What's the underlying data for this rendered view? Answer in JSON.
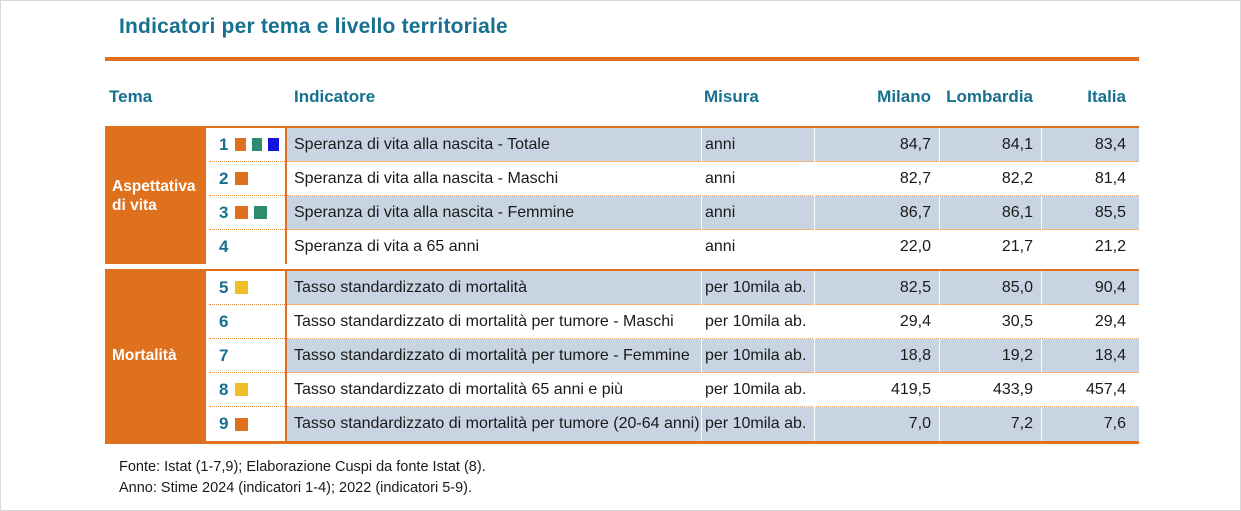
{
  "title": "Indicatori per tema e livello territoriale",
  "colors": {
    "accent_orange": "#DF701E",
    "heading_teal": "#17708F",
    "row_shade_blue": "#C9D4E3",
    "squares": {
      "orange": "#DF701E",
      "green": "#2E8C6E",
      "blue": "#1313DD",
      "yellow": "#EFBE29"
    }
  },
  "table": {
    "headers": {
      "tema": "Tema",
      "indicatore": "Indicatore",
      "misura": "Misura",
      "milano": "Milano",
      "lombardia": "Lombardia",
      "italia": "Italia"
    },
    "groups": [
      {
        "tema": "Aspettativa di vita",
        "rows": [
          {
            "num": "1",
            "squares": [
              "orange",
              "green",
              "blue"
            ],
            "indicatore": "Speranza di vita alla nascita - Totale",
            "misura": "anni",
            "milano": "84,7",
            "lombardia": "84,1",
            "italia": "83,4"
          },
          {
            "num": "2",
            "squares": [
              "orange"
            ],
            "indicatore": "Speranza di vita alla nascita - Maschi",
            "misura": "anni",
            "milano": "82,7",
            "lombardia": "82,2",
            "italia": "81,4"
          },
          {
            "num": "3",
            "squares": [
              "orange",
              "green"
            ],
            "indicatore": "Speranza di vita alla nascita - Femmine",
            "misura": "anni",
            "milano": "86,7",
            "lombardia": "86,1",
            "italia": "85,5"
          },
          {
            "num": "4",
            "squares": [],
            "indicatore": "Speranza di vita a 65 anni",
            "misura": "anni",
            "milano": "22,0",
            "lombardia": "21,7",
            "italia": "21,2"
          }
        ]
      },
      {
        "tema": "Mortalità",
        "rows": [
          {
            "num": "5",
            "squares": [
              "yellow"
            ],
            "indicatore": "Tasso standardizzato di mortalità",
            "misura": "per 10mila ab.",
            "milano": "82,5",
            "lombardia": "85,0",
            "italia": "90,4"
          },
          {
            "num": "6",
            "squares": [],
            "indicatore": "Tasso standardizzato di mortalità per tumore - Maschi",
            "misura": "per 10mila ab.",
            "milano": "29,4",
            "lombardia": "30,5",
            "italia": "29,4"
          },
          {
            "num": "7",
            "squares": [],
            "indicatore": "Tasso standardizzato di mortalità per tumore - Femmine",
            "misura": "per 10mila ab.",
            "milano": "18,8",
            "lombardia": "19,2",
            "italia": "18,4"
          },
          {
            "num": "8",
            "squares": [
              "yellow"
            ],
            "indicatore": "Tasso standardizzato di mortalità 65 anni e più",
            "misura": "per 10mila ab.",
            "milano": "419,5",
            "lombardia": "433,9",
            "italia": "457,4"
          },
          {
            "num": "9",
            "squares": [
              "orange"
            ],
            "indicatore": "Tasso standardizzato di mortalità per tumore (20-64 anni)",
            "misura": "per 10mila ab.",
            "milano": "7,0",
            "lombardia": "7,2",
            "italia": "7,6"
          }
        ]
      }
    ]
  },
  "footer": {
    "fonte": "Fonte: Istat (1-7,9); Elaborazione Cuspi da fonte Istat (8).",
    "anno": "Anno: Stime 2024 (indicatori 1-4); 2022 (indicatori 5-9)."
  }
}
